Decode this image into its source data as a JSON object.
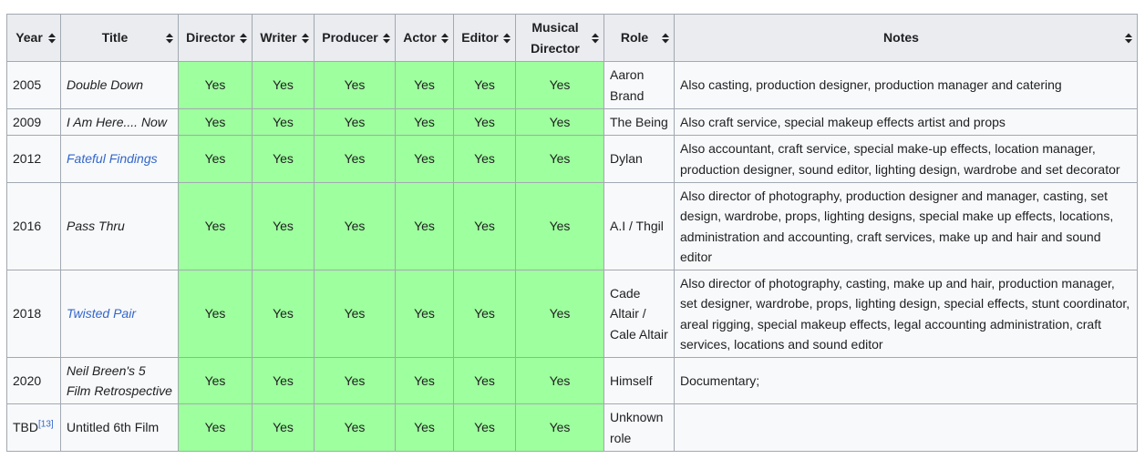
{
  "table": {
    "headers": [
      "Year",
      "Title",
      "Director",
      "Writer",
      "Producer",
      "Actor",
      "Editor",
      "Musical Director",
      "Role",
      "Notes"
    ],
    "sort_icon": "sort-updown-icon",
    "yes_color": "#9eff9e",
    "header_bg": "#eaecf0",
    "link_color": "#3366cc",
    "rows": [
      {
        "year": "2005",
        "year_ref": "",
        "title": "Double Down",
        "yes": [
          "Yes",
          "Yes",
          "Yes",
          "Yes",
          "Yes",
          "Yes"
        ],
        "role": "Aaron Brand",
        "notes": "Also casting, production designer, production manager and catering"
      },
      {
        "year": "2009",
        "year_ref": "",
        "title": "I Am Here.... Now",
        "yes": [
          "Yes",
          "Yes",
          "Yes",
          "Yes",
          "Yes",
          "Yes"
        ],
        "role": "The Being",
        "notes": "Also craft service, special makeup effects artist and props"
      },
      {
        "year": "2012",
        "year_ref": "",
        "title": "Fateful Findings",
        "yes": [
          "Yes",
          "Yes",
          "Yes",
          "Yes",
          "Yes",
          "Yes"
        ],
        "role": "Dylan",
        "notes": "Also accountant, craft service, special make-up effects, location manager, production designer, sound editor, lighting design, wardrobe and set decorator"
      },
      {
        "year": "2016",
        "year_ref": "",
        "title": "Pass Thru",
        "yes": [
          "Yes",
          "Yes",
          "Yes",
          "Yes",
          "Yes",
          "Yes"
        ],
        "role": "A.I / Thgil",
        "notes": "Also director of photography, production designer and manager, casting, set design, wardrobe, props, lighting designs, special make up effects, locations, administration and accounting, craft services, make up and hair and sound editor"
      },
      {
        "year": "2018",
        "year_ref": "",
        "title": "Twisted Pair",
        "yes": [
          "Yes",
          "Yes",
          "Yes",
          "Yes",
          "Yes",
          "Yes"
        ],
        "role": "Cade Altair / Cale Altair",
        "notes": "Also director of photography, casting, make up and hair, production manager, set designer, wardrobe, props, lighting design, special effects, stunt coordinator, areal rigging, special makeup effects, legal accounting administration, craft services, locations and sound editor"
      },
      {
        "year": "2020",
        "year_ref": "",
        "title": "Neil Breen's 5 Film Retrospective",
        "yes": [
          "Yes",
          "Yes",
          "Yes",
          "Yes",
          "Yes",
          "Yes"
        ],
        "role": "Himself",
        "notes": "Documentary;"
      },
      {
        "year": "TBD",
        "year_ref": "[13]",
        "title": "Untitled 6th Film",
        "yes": [
          "Yes",
          "Yes",
          "Yes",
          "Yes",
          "Yes",
          "Yes"
        ],
        "role": "Unknown role",
        "notes": ""
      }
    ]
  }
}
